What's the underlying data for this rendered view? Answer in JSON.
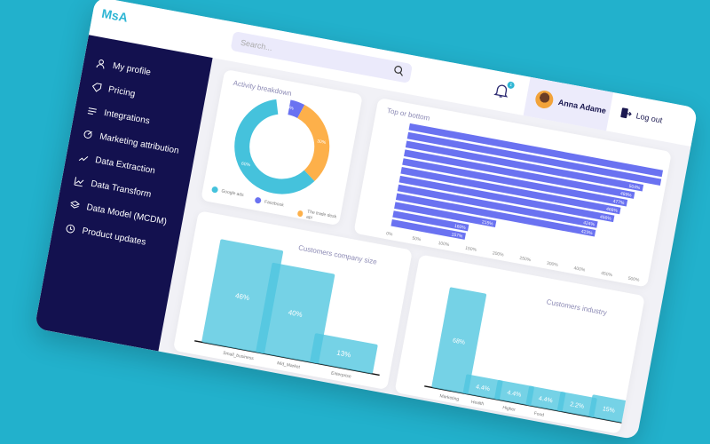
{
  "app": {
    "logo": "MsA"
  },
  "header": {
    "search_placeholder": "Search...",
    "notification_count": "1",
    "user_name": "Anna Adame",
    "logout_label": "Log out"
  },
  "sidebar": {
    "items": [
      {
        "label": "My profile",
        "icon": "user-icon"
      },
      {
        "label": "Pricing",
        "icon": "tag-icon"
      },
      {
        "label": "Integrations",
        "icon": "sliders-icon"
      },
      {
        "label": "Marketing attribution",
        "icon": "target-icon"
      },
      {
        "label": "Data Extraction",
        "icon": "extraction-icon"
      },
      {
        "label": "Data Transform",
        "icon": "chart-line-icon"
      },
      {
        "label": "Data Model (MCDM)",
        "icon": "layers-icon"
      },
      {
        "label": "Product updates",
        "icon": "clock-icon"
      }
    ]
  },
  "colors": {
    "cyan": "#45c2dc",
    "purple": "#6a72f1",
    "orange": "#fdb04a",
    "bar_light": "#5fcbe3",
    "navy": "#13114f"
  },
  "chart_data": [
    {
      "type": "pie",
      "title": "Activity breakdown",
      "donut": true,
      "slices": [
        {
          "name": "Google ads",
          "value": 60,
          "label": "60%",
          "color": "#45c2dc"
        },
        {
          "name": "Facebook",
          "value": 10,
          "label": "10%",
          "color": "#6a72f1"
        },
        {
          "name": "The trade desk api",
          "value": 30,
          "label": "30%",
          "color": "#fdb04a"
        }
      ],
      "legend": "bottom"
    },
    {
      "type": "bar",
      "orientation": "horizontal",
      "title": "Top or bottom",
      "values": [
        null,
        null,
        504,
        489,
        477,
        466,
        456,
        424,
        423,
        215,
        160,
        157
      ],
      "labels": [
        "",
        "",
        "504%",
        "489%",
        "477%",
        "466%",
        "456%",
        "424%",
        "423%",
        "215%",
        "160%",
        "157%"
      ],
      "xticks": [
        "0%",
        "50%",
        "100%",
        "150%",
        "200%",
        "250%",
        "300%",
        "400%",
        "450%",
        "500%"
      ],
      "xlim": [
        0,
        520
      ]
    },
    {
      "type": "bar",
      "title": "Customers company size",
      "categories": [
        "Small_business",
        "Mid_Market",
        "Enterprise"
      ],
      "values": [
        46,
        40,
        13
      ],
      "labels": [
        "46%",
        "40%",
        "13%"
      ]
    },
    {
      "type": "bar",
      "title": "Customers industry",
      "categories": [
        "Marketing",
        "Health",
        "Higher",
        "Food",
        "",
        ""
      ],
      "values": [
        68,
        4.4,
        4.4,
        4.4,
        2.2,
        15
      ],
      "labels": [
        "68%",
        "4.4%",
        "4.4%",
        "4.4%",
        "2.2%",
        "15%"
      ]
    }
  ]
}
